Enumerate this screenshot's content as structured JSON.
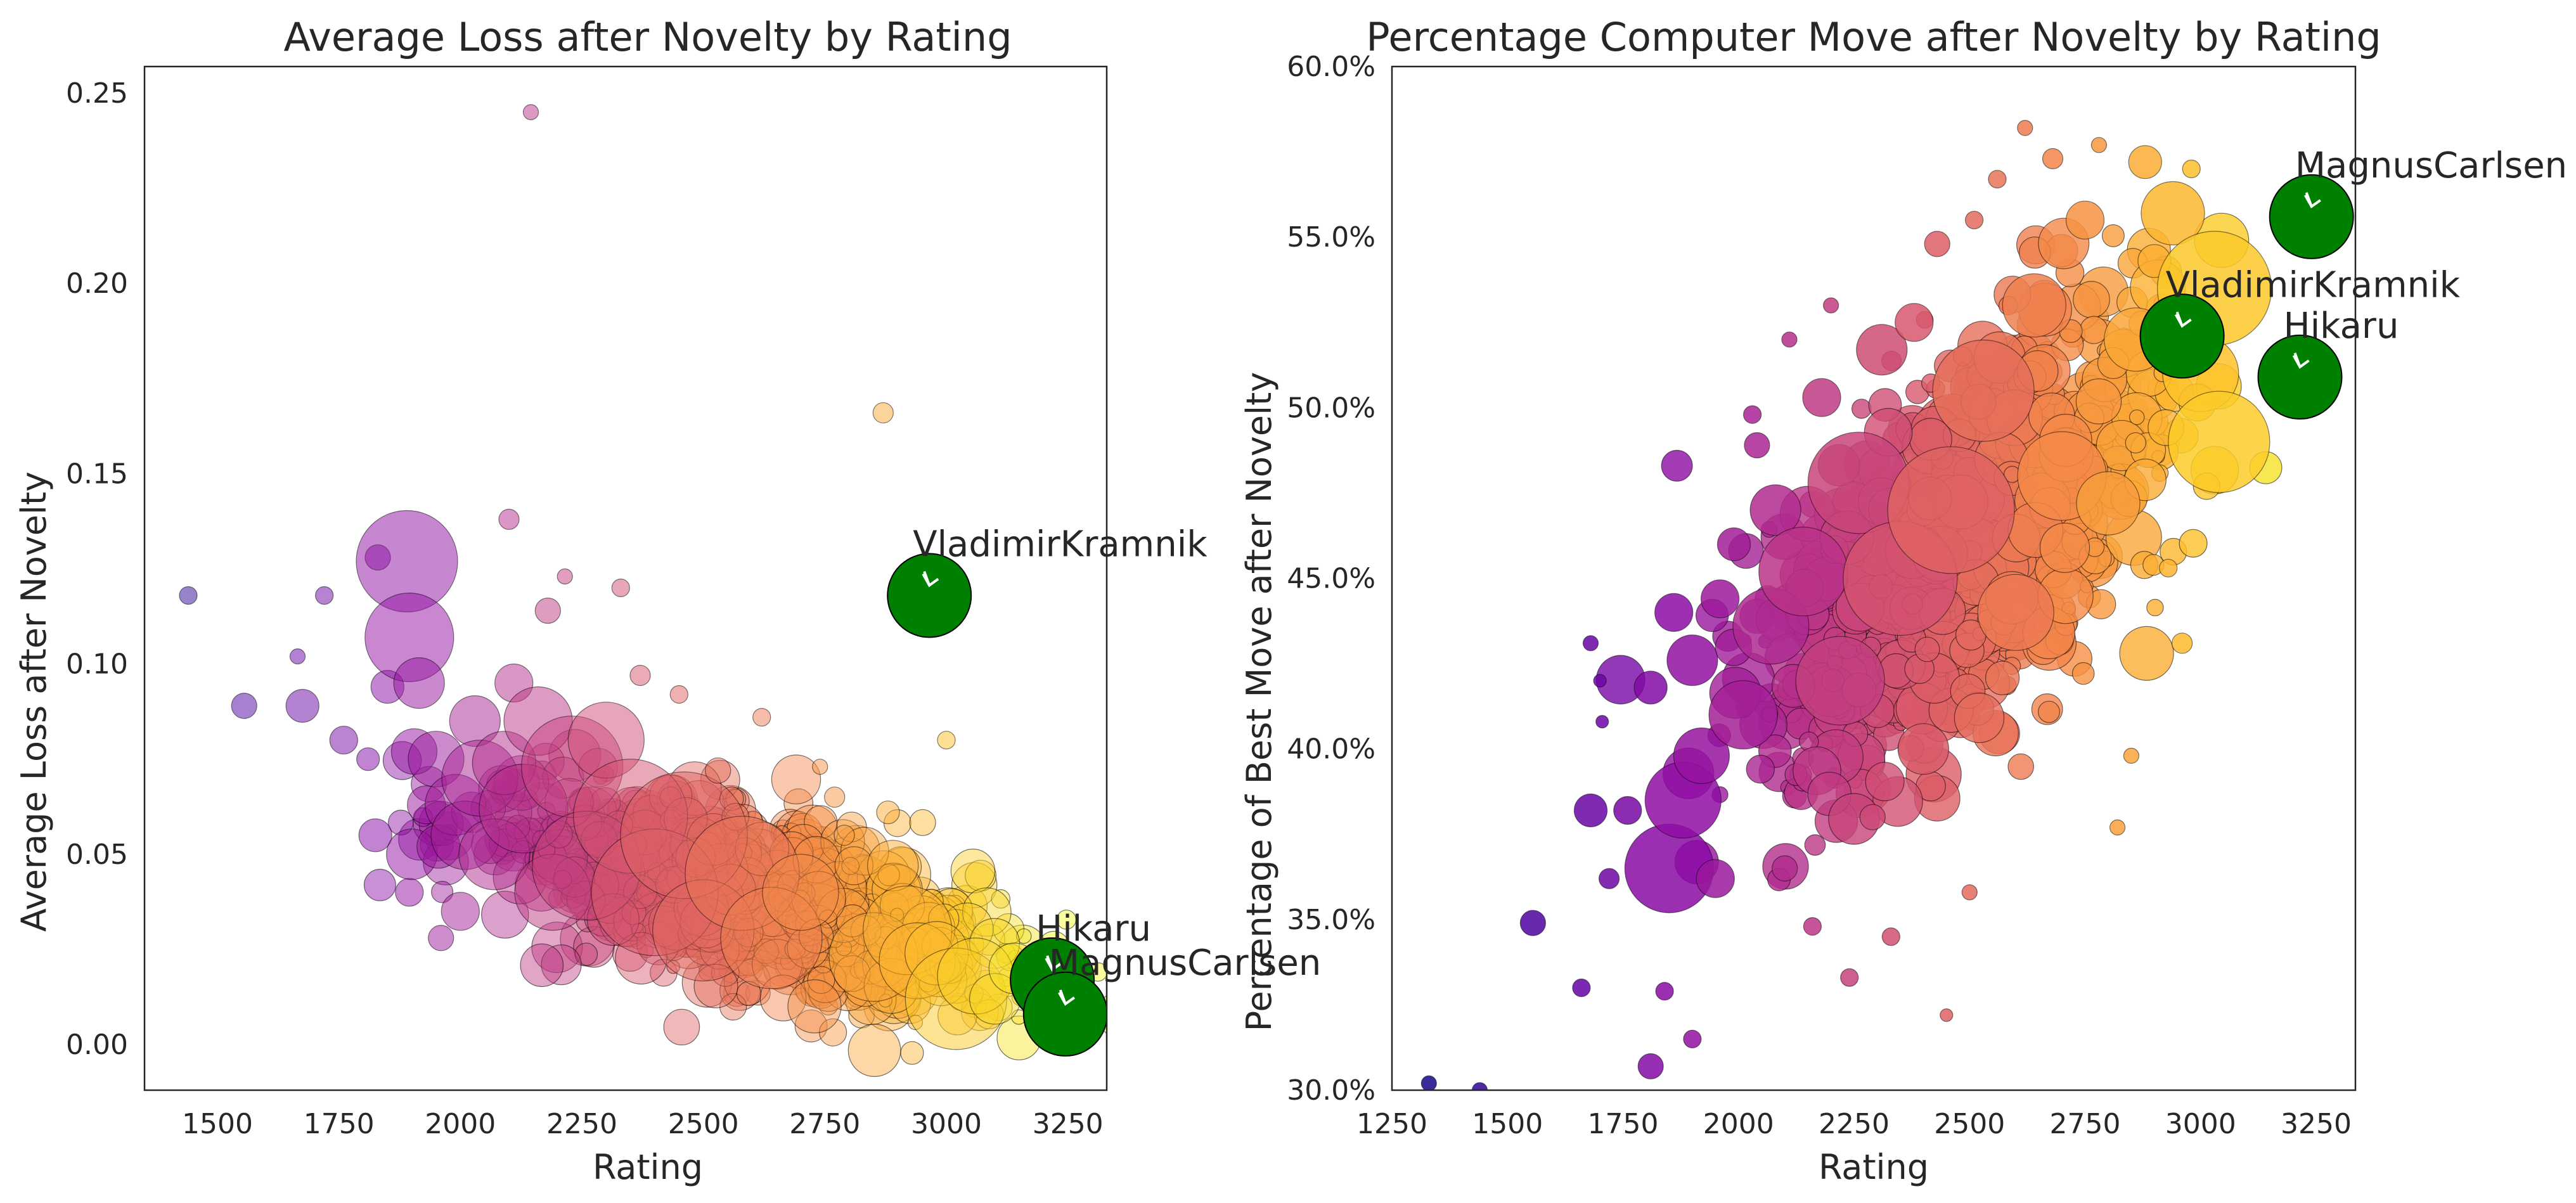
{
  "chart_data": [
    {
      "type": "scatter",
      "title": "Average Loss after Novelty by Rating",
      "xlabel": "Rating",
      "ylabel": "Average Loss after Novelty",
      "xlim": [
        1350,
        3330
      ],
      "ylim": [
        -0.012,
        0.257
      ],
      "xticks": [
        1500,
        1750,
        2000,
        2250,
        2500,
        2750,
        3000,
        3250
      ],
      "yticks": [
        0.0,
        0.05,
        0.1,
        0.15,
        0.2,
        0.25
      ],
      "yticklabels": [
        "0.00",
        "0.05",
        "0.10",
        "0.15",
        "0.20",
        "0.25"
      ],
      "colormap": "plasma",
      "marker_alpha": 0.5,
      "grid": false,
      "legend": "none",
      "highlight_color": "#008000",
      "cloud": {
        "center_x": [
          2480,
          0.036
        ],
        "trend_start": [
          2050,
          0.06
        ],
        "trend_end": [
          3150,
          0.015
        ]
      },
      "points": [
        {
          "x": 1440,
          "y": 0.118,
          "s": 14
        },
        {
          "x": 1555,
          "y": 0.089,
          "s": 20
        },
        {
          "x": 1675,
          "y": 0.089,
          "s": 26
        },
        {
          "x": 1665,
          "y": 0.102,
          "s": 12
        },
        {
          "x": 1720,
          "y": 0.118,
          "s": 14
        },
        {
          "x": 1760,
          "y": 0.08,
          "s": 22
        },
        {
          "x": 1810,
          "y": 0.075,
          "s": 18
        },
        {
          "x": 1825,
          "y": 0.055,
          "s": 26
        },
        {
          "x": 1830,
          "y": 0.128,
          "s": 20
        },
        {
          "x": 1850,
          "y": 0.094,
          "s": 26
        },
        {
          "x": 1890,
          "y": 0.127,
          "s": 80
        },
        {
          "x": 1895,
          "y": 0.107,
          "s": 70
        },
        {
          "x": 1915,
          "y": 0.095,
          "s": 40
        },
        {
          "x": 1905,
          "y": 0.077,
          "s": 36
        },
        {
          "x": 1930,
          "y": 0.063,
          "s": 30
        },
        {
          "x": 1895,
          "y": 0.04,
          "s": 22
        },
        {
          "x": 1900,
          "y": 0.05,
          "s": 40
        },
        {
          "x": 1950,
          "y": 0.075,
          "s": 44
        },
        {
          "x": 1960,
          "y": 0.028,
          "s": 20
        },
        {
          "x": 1955,
          "y": 0.052,
          "s": 34
        },
        {
          "x": 1990,
          "y": 0.063,
          "s": 48
        },
        {
          "x": 2010,
          "y": 0.055,
          "s": 54
        },
        {
          "x": 2000,
          "y": 0.035,
          "s": 30
        },
        {
          "x": 2030,
          "y": 0.085,
          "s": 40
        },
        {
          "x": 2040,
          "y": 0.07,
          "s": 60
        },
        {
          "x": 2070,
          "y": 0.05,
          "s": 56
        },
        {
          "x": 2090,
          "y": 0.074,
          "s": 50
        },
        {
          "x": 2100,
          "y": 0.138,
          "s": 16
        },
        {
          "x": 2110,
          "y": 0.095,
          "s": 30
        },
        {
          "x": 2130,
          "y": 0.062,
          "s": 70
        },
        {
          "x": 2145,
          "y": 0.245,
          "s": 12
        },
        {
          "x": 2160,
          "y": 0.085,
          "s": 54
        },
        {
          "x": 2180,
          "y": 0.114,
          "s": 20
        },
        {
          "x": 2190,
          "y": 0.04,
          "s": 60
        },
        {
          "x": 2215,
          "y": 0.123,
          "s": 12
        },
        {
          "x": 2230,
          "y": 0.073,
          "s": 80
        },
        {
          "x": 2260,
          "y": 0.047,
          "s": 86
        },
        {
          "x": 2300,
          "y": 0.08,
          "s": 60
        },
        {
          "x": 2330,
          "y": 0.12,
          "s": 14
        },
        {
          "x": 2350,
          "y": 0.06,
          "s": 90
        },
        {
          "x": 2370,
          "y": 0.097,
          "s": 16
        },
        {
          "x": 2400,
          "y": 0.04,
          "s": 100
        },
        {
          "x": 2450,
          "y": 0.092,
          "s": 14
        },
        {
          "x": 2460,
          "y": 0.055,
          "s": 100
        },
        {
          "x": 2500,
          "y": 0.03,
          "s": 80
        },
        {
          "x": 2530,
          "y": 0.072,
          "s": 20
        },
        {
          "x": 2580,
          "y": 0.045,
          "s": 90
        },
        {
          "x": 2620,
          "y": 0.086,
          "s": 14
        },
        {
          "x": 2640,
          "y": 0.028,
          "s": 80
        },
        {
          "x": 2700,
          "y": 0.04,
          "s": 60
        },
        {
          "x": 2740,
          "y": 0.073,
          "s": 12
        },
        {
          "x": 2770,
          "y": 0.065,
          "s": 16
        },
        {
          "x": 2790,
          "y": 0.055,
          "s": 16
        },
        {
          "x": 2810,
          "y": 0.047,
          "s": 30
        },
        {
          "x": 2850,
          "y": 0.023,
          "s": 70
        },
        {
          "x": 2870,
          "y": 0.166,
          "s": 16
        },
        {
          "x": 2880,
          "y": 0.061,
          "s": 18
        },
        {
          "x": 2890,
          "y": 0.047,
          "s": 40
        },
        {
          "x": 2920,
          "y": 0.03,
          "s": 70
        },
        {
          "x": 2940,
          "y": 0.022,
          "s": 60
        },
        {
          "x": 2980,
          "y": 0.024,
          "s": 50
        },
        {
          "x": 3000,
          "y": 0.08,
          "s": 14
        },
        {
          "x": 3020,
          "y": 0.012,
          "s": 80
        },
        {
          "x": 3060,
          "y": 0.018,
          "s": 60
        },
        {
          "x": 3100,
          "y": 0.012,
          "s": 40
        },
        {
          "x": 3140,
          "y": 0.02,
          "s": 40
        }
      ],
      "annotations": [
        {
          "label": "VladimirKramnik",
          "x": 2965,
          "y": 0.118
        },
        {
          "label": "Hikaru",
          "x": 3218,
          "y": 0.017
        },
        {
          "label": "MagnusCarlsen",
          "x": 3245,
          "y": 0.008
        }
      ]
    },
    {
      "type": "scatter",
      "title": "Percentage Computer Move after Novelty by Rating",
      "xlabel": "Rating",
      "ylabel": "Percentage of Best Move after Novelty",
      "xlim": [
        1250,
        3335
      ],
      "ylim": [
        0.3,
        0.6
      ],
      "xticks": [
        1250,
        1500,
        1750,
        2000,
        2250,
        2500,
        2750,
        3000,
        3250
      ],
      "yticks": [
        0.3,
        0.35,
        0.4,
        0.45,
        0.5,
        0.55,
        0.6
      ],
      "yticklabels": [
        "30.0%",
        "35.0%",
        "40.0%",
        "45.0%",
        "50.0%",
        "55.0%",
        "60.0%"
      ],
      "colormap": "plasma",
      "marker_alpha": 0.85,
      "grid": false,
      "legend": "none",
      "highlight_color": "#008000",
      "cloud": {
        "trend_start": [
          2050,
          0.4
        ],
        "trend_end": [
          2950,
          0.52
        ]
      },
      "points": [
        {
          "x": 1330,
          "y": 0.302,
          "s": 12
        },
        {
          "x": 1440,
          "y": 0.3,
          "s": 12
        },
        {
          "x": 1555,
          "y": 0.349,
          "s": 20
        },
        {
          "x": 1660,
          "y": 0.33,
          "s": 14
        },
        {
          "x": 1680,
          "y": 0.382,
          "s": 26
        },
        {
          "x": 1680,
          "y": 0.431,
          "s": 12
        },
        {
          "x": 1700,
          "y": 0.42,
          "s": 10
        },
        {
          "x": 1705,
          "y": 0.408,
          "s": 10
        },
        {
          "x": 1720,
          "y": 0.362,
          "s": 16
        },
        {
          "x": 1760,
          "y": 0.382,
          "s": 22
        },
        {
          "x": 1810,
          "y": 0.307,
          "s": 20
        },
        {
          "x": 1810,
          "y": 0.418,
          "s": 26
        },
        {
          "x": 1840,
          "y": 0.329,
          "s": 14
        },
        {
          "x": 1850,
          "y": 0.365,
          "s": 70
        },
        {
          "x": 1860,
          "y": 0.44,
          "s": 30
        },
        {
          "x": 1880,
          "y": 0.385,
          "s": 60
        },
        {
          "x": 1900,
          "y": 0.315,
          "s": 14
        },
        {
          "x": 1900,
          "y": 0.426,
          "s": 40
        },
        {
          "x": 1920,
          "y": 0.398,
          "s": 44
        },
        {
          "x": 1950,
          "y": 0.362,
          "s": 30
        },
        {
          "x": 1960,
          "y": 0.444,
          "s": 30
        },
        {
          "x": 1990,
          "y": 0.46,
          "s": 26
        },
        {
          "x": 2010,
          "y": 0.41,
          "s": 54
        },
        {
          "x": 2030,
          "y": 0.498,
          "s": 14
        },
        {
          "x": 2040,
          "y": 0.489,
          "s": 20
        },
        {
          "x": 2070,
          "y": 0.436,
          "s": 60
        },
        {
          "x": 2080,
          "y": 0.47,
          "s": 40
        },
        {
          "x": 2100,
          "y": 0.365,
          "s": 20
        },
        {
          "x": 2110,
          "y": 0.52,
          "s": 12
        },
        {
          "x": 2140,
          "y": 0.452,
          "s": 70
        },
        {
          "x": 2160,
          "y": 0.348,
          "s": 14
        },
        {
          "x": 2180,
          "y": 0.503,
          "s": 30
        },
        {
          "x": 2200,
          "y": 0.53,
          "s": 12
        },
        {
          "x": 2220,
          "y": 0.42,
          "s": 70
        },
        {
          "x": 2240,
          "y": 0.333,
          "s": 14
        },
        {
          "x": 2260,
          "y": 0.478,
          "s": 80
        },
        {
          "x": 2290,
          "y": 0.38,
          "s": 20
        },
        {
          "x": 2310,
          "y": 0.517,
          "s": 40
        },
        {
          "x": 2330,
          "y": 0.345,
          "s": 14
        },
        {
          "x": 2350,
          "y": 0.45,
          "s": 90
        },
        {
          "x": 2380,
          "y": 0.525,
          "s": 30
        },
        {
          "x": 2400,
          "y": 0.4,
          "s": 40
        },
        {
          "x": 2430,
          "y": 0.548,
          "s": 20
        },
        {
          "x": 2450,
          "y": 0.322,
          "s": 10
        },
        {
          "x": 2460,
          "y": 0.47,
          "s": 100
        },
        {
          "x": 2500,
          "y": 0.358,
          "s": 12
        },
        {
          "x": 2510,
          "y": 0.555,
          "s": 14
        },
        {
          "x": 2530,
          "y": 0.505,
          "s": 80
        },
        {
          "x": 2560,
          "y": 0.567,
          "s": 14
        },
        {
          "x": 2600,
          "y": 0.44,
          "s": 60
        },
        {
          "x": 2620,
          "y": 0.582,
          "s": 12
        },
        {
          "x": 2640,
          "y": 0.53,
          "s": 50
        },
        {
          "x": 2680,
          "y": 0.573,
          "s": 16
        },
        {
          "x": 2700,
          "y": 0.48,
          "s": 70
        },
        {
          "x": 2750,
          "y": 0.555,
          "s": 30
        },
        {
          "x": 2780,
          "y": 0.577,
          "s": 12
        },
        {
          "x": 2800,
          "y": 0.472,
          "s": 50
        },
        {
          "x": 2820,
          "y": 0.377,
          "s": 12
        },
        {
          "x": 2850,
          "y": 0.398,
          "s": 12
        },
        {
          "x": 2860,
          "y": 0.52,
          "s": 50
        },
        {
          "x": 2880,
          "y": 0.572,
          "s": 26
        },
        {
          "x": 2900,
          "y": 0.543,
          "s": 26
        },
        {
          "x": 2930,
          "y": 0.453,
          "s": 14
        },
        {
          "x": 2940,
          "y": 0.557,
          "s": 50
        },
        {
          "x": 2960,
          "y": 0.431,
          "s": 16
        },
        {
          "x": 2980,
          "y": 0.57,
          "s": 14
        },
        {
          "x": 3000,
          "y": 0.51,
          "s": 60
        },
        {
          "x": 3030,
          "y": 0.535,
          "s": 90
        },
        {
          "x": 3040,
          "y": 0.49,
          "s": 80
        }
      ],
      "annotations": [
        {
          "label": "MagnusCarlsen",
          "x": 3240,
          "y": 0.556
        },
        {
          "label": "VladimirKramnik",
          "x": 2960,
          "y": 0.521
        },
        {
          "label": "Hikaru",
          "x": 3215,
          "y": 0.509
        }
      ]
    }
  ]
}
